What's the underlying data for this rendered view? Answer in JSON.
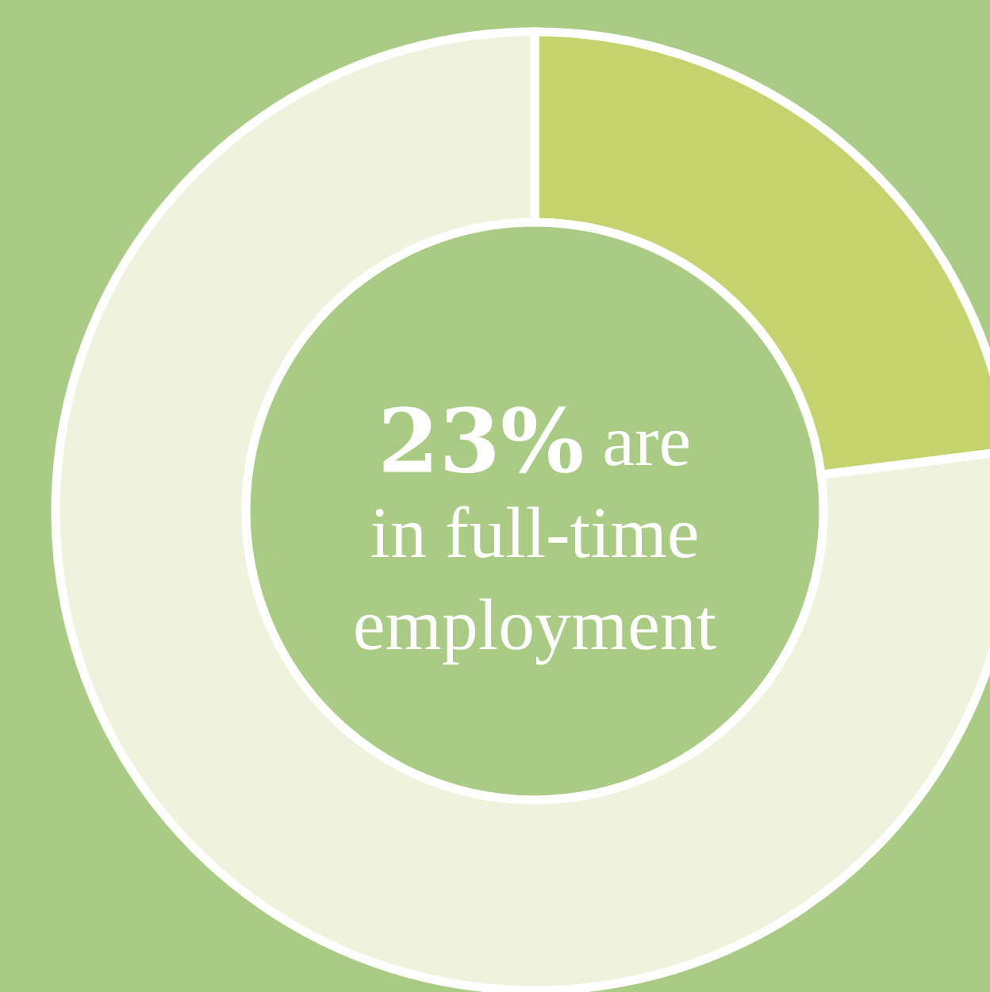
{
  "chart_data": {
    "type": "donut",
    "categories": [
      null,
      null
    ],
    "values": [
      23,
      77
    ],
    "colors": [
      "#c5d36e",
      "#eff3dd"
    ],
    "annotations": [
      "23% are",
      "in full-time",
      "employment"
    ]
  }
}
